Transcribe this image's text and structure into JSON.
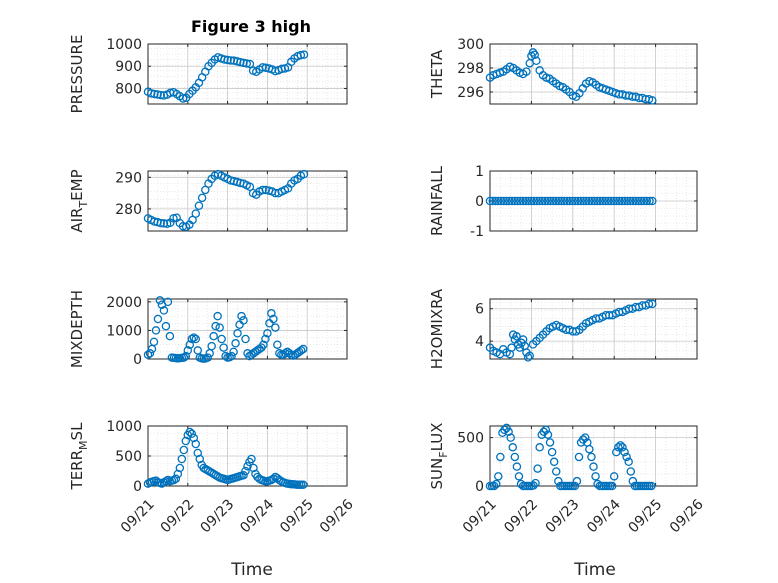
{
  "figure_title": "Figure 3 high",
  "marker_color": "#0072bd",
  "chart_data": [
    {
      "type": "scatter",
      "ylabel": "PRESSURE",
      "title": "Figure 3 high",
      "ylim": [
        730,
        1000
      ],
      "yticks": [
        800,
        900,
        1000
      ],
      "grid": true,
      "x": [
        0.0,
        0.08,
        0.16,
        0.24,
        0.32,
        0.4,
        0.48,
        0.56,
        0.64,
        0.72,
        0.8,
        0.88,
        0.96,
        1.04,
        1.12,
        1.2,
        1.28,
        1.36,
        1.44,
        1.52,
        1.6,
        1.68,
        1.76,
        1.84,
        1.92,
        2.0,
        2.08,
        2.16,
        2.24,
        2.32,
        2.4,
        2.48,
        2.56,
        2.64,
        2.72,
        2.8,
        2.88,
        2.96,
        3.04,
        3.12,
        3.2,
        3.28,
        3.36,
        3.44,
        3.52,
        3.6,
        3.68,
        3.76,
        3.84,
        3.92
      ],
      "values": [
        785,
        778,
        775,
        773,
        770,
        768,
        772,
        780,
        783,
        775,
        765,
        755,
        758,
        775,
        790,
        805,
        825,
        850,
        875,
        900,
        915,
        930,
        940,
        935,
        930,
        928,
        926,
        925,
        922,
        918,
        915,
        912,
        910,
        880,
        875,
        885,
        895,
        893,
        890,
        885,
        878,
        882,
        888,
        890,
        895,
        920,
        935,
        945,
        950,
        952
      ]
    },
    {
      "type": "scatter",
      "ylabel": "THETA",
      "ylim": [
        295,
        300
      ],
      "yticks": [
        296,
        298,
        300
      ],
      "grid": true,
      "x": [
        0.0,
        0.08,
        0.16,
        0.24,
        0.32,
        0.4,
        0.48,
        0.56,
        0.64,
        0.72,
        0.8,
        0.88,
        0.96,
        1.0,
        1.04,
        1.08,
        1.12,
        1.2,
        1.28,
        1.36,
        1.44,
        1.52,
        1.6,
        1.68,
        1.76,
        1.84,
        1.92,
        2.0,
        2.08,
        2.16,
        2.24,
        2.32,
        2.4,
        2.48,
        2.56,
        2.64,
        2.72,
        2.8,
        2.88,
        2.96,
        3.04,
        3.12,
        3.2,
        3.28,
        3.36,
        3.44,
        3.52,
        3.6,
        3.68,
        3.76,
        3.84,
        3.92
      ],
      "values": [
        297.2,
        297.4,
        297.5,
        297.6,
        297.7,
        297.9,
        298.1,
        298.0,
        297.8,
        297.6,
        297.5,
        297.7,
        298.4,
        299.0,
        299.3,
        299.1,
        298.6,
        297.8,
        297.4,
        297.2,
        297.1,
        296.9,
        296.7,
        296.5,
        296.4,
        296.2,
        296.0,
        295.7,
        295.6,
        295.9,
        296.3,
        296.7,
        296.9,
        296.8,
        296.6,
        296.4,
        296.3,
        296.2,
        296.1,
        296.0,
        295.9,
        295.8,
        295.8,
        295.7,
        295.7,
        295.6,
        295.6,
        295.5,
        295.5,
        295.4,
        295.4,
        295.3
      ]
    },
    {
      "type": "scatter",
      "ylabel_main": "AIR",
      "ylabel_sub": "T",
      "ylabel_rest": "EMP",
      "ylim": [
        273,
        292
      ],
      "yticks": [
        280,
        290
      ],
      "grid": true,
      "x": [
        0.0,
        0.08,
        0.16,
        0.24,
        0.32,
        0.4,
        0.48,
        0.56,
        0.64,
        0.72,
        0.8,
        0.88,
        0.96,
        1.04,
        1.12,
        1.2,
        1.28,
        1.36,
        1.44,
        1.52,
        1.6,
        1.68,
        1.76,
        1.84,
        1.92,
        2.0,
        2.08,
        2.16,
        2.24,
        2.32,
        2.4,
        2.48,
        2.56,
        2.64,
        2.72,
        2.8,
        2.88,
        2.96,
        3.04,
        3.12,
        3.2,
        3.28,
        3.36,
        3.44,
        3.52,
        3.6,
        3.68,
        3.76,
        3.84,
        3.92
      ],
      "values": [
        277,
        276.5,
        276,
        275.8,
        275.5,
        275.4,
        275.3,
        275.6,
        277,
        277.2,
        275.5,
        274.5,
        274.3,
        275,
        276.5,
        278.5,
        281,
        283.5,
        286,
        288,
        289.5,
        290.5,
        291,
        290.5,
        290,
        289.5,
        289,
        288.8,
        288.5,
        288.2,
        288,
        287.5,
        287,
        285,
        284.5,
        285.5,
        286,
        286,
        285.8,
        285.5,
        285,
        285,
        285.5,
        286,
        286.5,
        288,
        289,
        289.5,
        290.5,
        291
      ]
    },
    {
      "type": "scatter",
      "ylabel": "RAINFALL",
      "ylim": [
        -1,
        1
      ],
      "yticks": [
        -1,
        0,
        1
      ],
      "grid": true,
      "x_range": [
        0,
        3.92
      ],
      "constant_value": 0,
      "count": 60
    },
    {
      "type": "scatter",
      "ylabel": "MIXDEPTH",
      "ylim": [
        0,
        2100
      ],
      "yticks": [
        0,
        1000,
        2000
      ],
      "grid": true,
      "x": [
        0.0,
        0.05,
        0.1,
        0.15,
        0.2,
        0.25,
        0.3,
        0.35,
        0.4,
        0.45,
        0.5,
        0.55,
        0.6,
        0.65,
        0.7,
        0.75,
        0.8,
        0.85,
        0.9,
        0.95,
        1.0,
        1.05,
        1.1,
        1.15,
        1.2,
        1.25,
        1.3,
        1.35,
        1.4,
        1.45,
        1.5,
        1.55,
        1.6,
        1.65,
        1.7,
        1.75,
        1.8,
        1.85,
        1.9,
        1.95,
        2.0,
        2.05,
        2.1,
        2.15,
        2.2,
        2.25,
        2.3,
        2.35,
        2.4,
        2.45,
        2.5,
        2.55,
        2.6,
        2.65,
        2.7,
        2.75,
        2.8,
        2.85,
        2.9,
        2.95,
        3.0,
        3.05,
        3.1,
        3.15,
        3.2,
        3.25,
        3.3,
        3.35,
        3.4,
        3.45,
        3.5,
        3.55,
        3.6,
        3.65,
        3.7,
        3.75,
        3.8,
        3.85,
        3.9
      ],
      "values": [
        150,
        200,
        350,
        600,
        1000,
        1400,
        2050,
        1900,
        1700,
        1150,
        2000,
        800,
        50,
        40,
        30,
        20,
        30,
        40,
        50,
        100,
        300,
        500,
        700,
        750,
        700,
        300,
        50,
        20,
        10,
        20,
        50,
        200,
        450,
        800,
        1150,
        1500,
        1100,
        700,
        400,
        100,
        50,
        60,
        100,
        250,
        550,
        900,
        1200,
        1500,
        1350,
        700,
        200,
        100,
        150,
        200,
        250,
        300,
        350,
        400,
        500,
        700,
        900,
        1250,
        1600,
        1400,
        1100,
        500,
        200,
        150,
        150,
        200,
        250,
        200,
        150,
        120,
        150,
        200,
        250,
        300,
        350
      ]
    },
    {
      "type": "scatter",
      "ylabel": "H2OMIXRA",
      "ylim": [
        2.9,
        6.6
      ],
      "yticks": [
        4,
        6
      ],
      "grid": true,
      "x": [
        0.0,
        0.08,
        0.16,
        0.24,
        0.32,
        0.4,
        0.48,
        0.52,
        0.56,
        0.6,
        0.64,
        0.68,
        0.72,
        0.76,
        0.8,
        0.84,
        0.88,
        0.92,
        0.96,
        1.04,
        1.12,
        1.2,
        1.28,
        1.36,
        1.44,
        1.52,
        1.6,
        1.68,
        1.76,
        1.84,
        1.92,
        2.0,
        2.08,
        2.16,
        2.24,
        2.32,
        2.4,
        2.48,
        2.56,
        2.64,
        2.72,
        2.8,
        2.88,
        2.96,
        3.04,
        3.12,
        3.2,
        3.28,
        3.36,
        3.44,
        3.52,
        3.6,
        3.68,
        3.76,
        3.84,
        3.92
      ],
      "values": [
        3.6,
        3.4,
        3.3,
        3.2,
        3.5,
        3.3,
        3.2,
        3.6,
        4.4,
        4.1,
        4.3,
        3.8,
        3.6,
        3.9,
        4.1,
        3.7,
        3.3,
        3.0,
        3.1,
        3.8,
        4.0,
        4.2,
        4.4,
        4.6,
        4.8,
        4.9,
        5.0,
        4.9,
        4.8,
        4.7,
        4.7,
        4.6,
        4.6,
        4.7,
        4.9,
        5.1,
        5.2,
        5.3,
        5.4,
        5.4,
        5.5,
        5.6,
        5.6,
        5.6,
        5.7,
        5.8,
        5.8,
        5.9,
        6.0,
        6.0,
        6.1,
        6.1,
        6.2,
        6.2,
        6.3,
        6.3
      ]
    },
    {
      "type": "scatter",
      "ylabel_main": "TERR",
      "ylabel_sub": "M",
      "ylabel_rest": "SL",
      "ylim": [
        0,
        1000
      ],
      "yticks": [
        0,
        500,
        1000
      ],
      "grid": true,
      "x": [
        0.0,
        0.05,
        0.1,
        0.15,
        0.2,
        0.25,
        0.3,
        0.35,
        0.4,
        0.45,
        0.5,
        0.55,
        0.6,
        0.65,
        0.7,
        0.75,
        0.8,
        0.85,
        0.9,
        0.95,
        1.0,
        1.05,
        1.1,
        1.15,
        1.2,
        1.25,
        1.3,
        1.35,
        1.4,
        1.45,
        1.5,
        1.55,
        1.6,
        1.65,
        1.7,
        1.75,
        1.8,
        1.85,
        1.9,
        1.95,
        2.0,
        2.05,
        2.1,
        2.15,
        2.2,
        2.25,
        2.3,
        2.35,
        2.4,
        2.45,
        2.5,
        2.55,
        2.6,
        2.65,
        2.7,
        2.75,
        2.8,
        2.85,
        2.9,
        2.95,
        3.0,
        3.05,
        3.1,
        3.15,
        3.2,
        3.25,
        3.3,
        3.35,
        3.4,
        3.45,
        3.5,
        3.55,
        3.6,
        3.65,
        3.7,
        3.75,
        3.8,
        3.85,
        3.9
      ],
      "values": [
        40,
        60,
        70,
        80,
        90,
        60,
        50,
        40,
        60,
        80,
        100,
        80,
        90,
        100,
        120,
        200,
        300,
        450,
        600,
        750,
        850,
        900,
        870,
        800,
        700,
        550,
        450,
        350,
        300,
        280,
        260,
        240,
        220,
        200,
        180,
        160,
        140,
        130,
        120,
        110,
        100,
        110,
        120,
        130,
        140,
        150,
        160,
        170,
        180,
        250,
        330,
        400,
        450,
        300,
        200,
        150,
        120,
        100,
        90,
        80,
        80,
        90,
        100,
        120,
        150,
        130,
        100,
        80,
        60,
        50,
        40,
        35,
        30,
        30,
        25,
        20,
        20,
        20,
        20
      ]
    },
    {
      "type": "scatter",
      "ylabel_main": "SUN",
      "ylabel_sub": "F",
      "ylabel_rest": "LUX",
      "ylim": [
        0,
        620
      ],
      "yticks": [
        0,
        500
      ],
      "grid": true,
      "x": [
        0.0,
        0.05,
        0.1,
        0.15,
        0.2,
        0.25,
        0.3,
        0.35,
        0.4,
        0.45,
        0.5,
        0.55,
        0.6,
        0.65,
        0.7,
        0.75,
        0.8,
        0.85,
        0.9,
        0.95,
        1.0,
        1.05,
        1.1,
        1.15,
        1.2,
        1.25,
        1.3,
        1.35,
        1.4,
        1.45,
        1.5,
        1.55,
        1.6,
        1.65,
        1.7,
        1.75,
        1.8,
        1.85,
        1.9,
        1.95,
        2.0,
        2.05,
        2.1,
        2.15,
        2.2,
        2.25,
        2.3,
        2.35,
        2.4,
        2.45,
        2.5,
        2.55,
        2.6,
        2.65,
        2.7,
        2.75,
        2.8,
        2.85,
        2.9,
        2.95,
        3.0,
        3.05,
        3.1,
        3.15,
        3.2,
        3.25,
        3.3,
        3.35,
        3.4,
        3.45,
        3.5,
        3.55,
        3.6,
        3.65,
        3.7,
        3.75,
        3.8,
        3.85,
        3.9
      ],
      "values": [
        0,
        0,
        0,
        20,
        100,
        300,
        550,
        580,
        600,
        560,
        500,
        400,
        300,
        200,
        100,
        20,
        0,
        0,
        0,
        0,
        0,
        5,
        30,
        180,
        400,
        530,
        560,
        580,
        530,
        450,
        350,
        250,
        150,
        50,
        0,
        0,
        0,
        0,
        0,
        0,
        0,
        0,
        50,
        300,
        450,
        480,
        500,
        450,
        380,
        300,
        200,
        100,
        20,
        0,
        0,
        0,
        0,
        0,
        0,
        0,
        100,
        350,
        400,
        420,
        400,
        350,
        300,
        250,
        150,
        50,
        0,
        0,
        0,
        0,
        0,
        0,
        0,
        0,
        0
      ]
    }
  ],
  "x_axis": {
    "xlim": [
      0,
      5
    ],
    "tick_positions": [
      0,
      1,
      2,
      3,
      4,
      5
    ],
    "tick_labels": [
      "09/21",
      "09/22",
      "09/23",
      "09/24",
      "09/25",
      "09/26"
    ],
    "xlabel": "Time"
  }
}
